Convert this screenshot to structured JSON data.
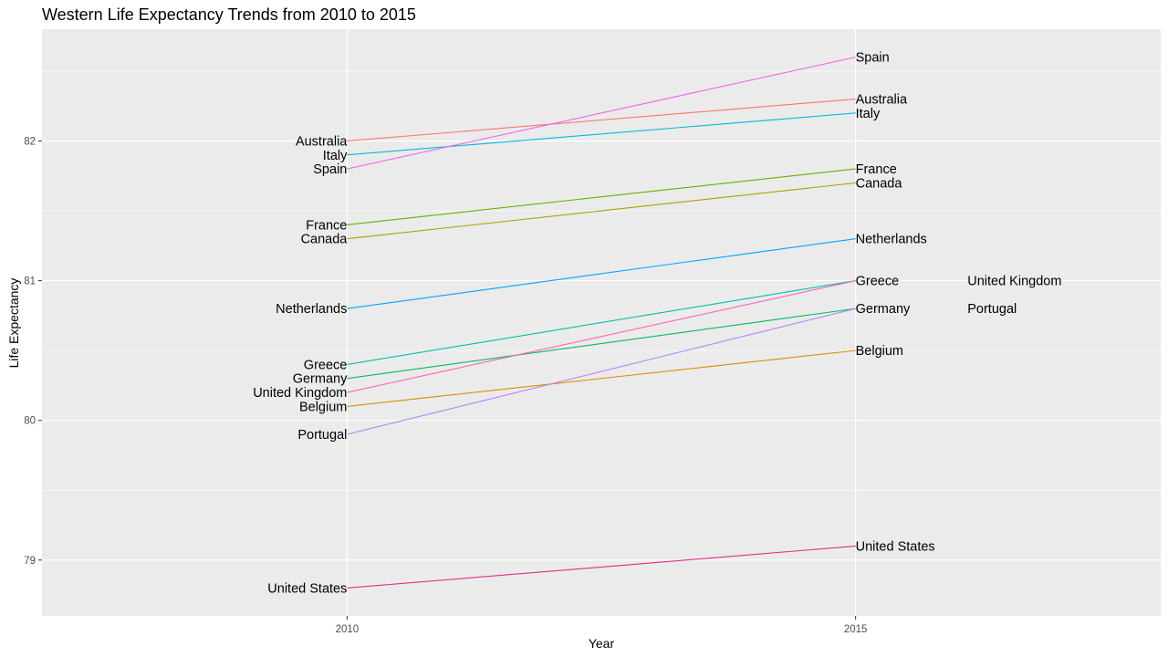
{
  "chart_data": {
    "type": "line",
    "title": "Western Life Expectancy Trends from 2010 to 2015",
    "xlabel": "Year",
    "ylabel": "Life Expectancy",
    "x": [
      2010,
      2015
    ],
    "x_tick_labels": [
      "2010",
      "2015"
    ],
    "y_ticks": [
      79,
      80,
      81,
      82
    ],
    "y_tick_labels": [
      "79",
      "80",
      "81",
      "82"
    ],
    "xlim": [
      2007,
      2018
    ],
    "ylim": [
      78.6,
      82.8
    ],
    "grid": true,
    "legend": "none",
    "series": [
      {
        "name": "Australia",
        "values": [
          82.0,
          82.3
        ],
        "color": "#F8766D"
      },
      {
        "name": "Belgium",
        "values": [
          80.1,
          80.5
        ],
        "color": "#DB8E00"
      },
      {
        "name": "Canada",
        "values": [
          81.3,
          81.7
        ],
        "color": "#AEA200"
      },
      {
        "name": "France",
        "values": [
          81.4,
          81.8
        ],
        "color": "#64B200"
      },
      {
        "name": "Germany",
        "values": [
          80.3,
          80.8
        ],
        "color": "#00BD5C"
      },
      {
        "name": "Greece",
        "values": [
          80.4,
          81.0
        ],
        "color": "#00C1A7"
      },
      {
        "name": "Italy",
        "values": [
          81.9,
          82.2
        ],
        "color": "#00BADE"
      },
      {
        "name": "Netherlands",
        "values": [
          80.8,
          81.3
        ],
        "color": "#00A6FF"
      },
      {
        "name": "Portugal",
        "values": [
          79.9,
          80.8
        ],
        "color": "#B385FF"
      },
      {
        "name": "Spain",
        "values": [
          81.8,
          82.6
        ],
        "color": "#EF67EB"
      },
      {
        "name": "United Kingdom",
        "values": [
          80.2,
          81.0
        ],
        "color": "#FF63B6"
      },
      {
        "name": "United States",
        "values": [
          78.8,
          79.1
        ],
        "color": "#E7298A"
      }
    ],
    "labels_2010": [
      {
        "text": "Australia",
        "y": 82.0
      },
      {
        "text": "Italy",
        "y": 81.9
      },
      {
        "text": "Spain",
        "y": 81.8
      },
      {
        "text": "France",
        "y": 81.4
      },
      {
        "text": "Canada",
        "y": 81.3
      },
      {
        "text": "Netherlands",
        "y": 80.8
      },
      {
        "text": "Greece",
        "y": 80.4
      },
      {
        "text": "Germany",
        "y": 80.3
      },
      {
        "text": "United Kingdom",
        "y": 80.2
      },
      {
        "text": "Belgium",
        "y": 80.1
      },
      {
        "text": "Portugal",
        "y": 79.9
      },
      {
        "text": "United States",
        "y": 78.8
      }
    ],
    "labels_2015": [
      {
        "text": "Spain",
        "y": 82.6
      },
      {
        "text": "Australia",
        "y": 82.3
      },
      {
        "text": "Italy",
        "y": 82.2
      },
      {
        "text": "France",
        "y": 81.8
      },
      {
        "text": "Canada",
        "y": 81.7
      },
      {
        "text": "Netherlands",
        "y": 81.3
      },
      {
        "text": "Greece",
        "y": 81.0
      },
      {
        "text": "Germany",
        "y": 80.8
      },
      {
        "text": "Belgium",
        "y": 80.5
      },
      {
        "text": "United States",
        "y": 79.1
      }
    ],
    "labels_extra": [
      {
        "text": "United Kingdom",
        "x": 2016.1,
        "y": 81.0
      },
      {
        "text": "Portugal",
        "x": 2016.1,
        "y": 80.8
      }
    ]
  }
}
